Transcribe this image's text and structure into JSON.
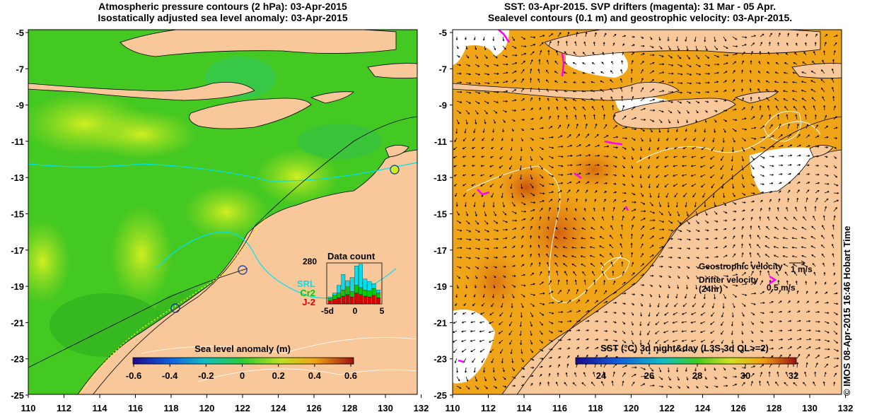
{
  "left_panel": {
    "title_line1": "Atmospheric pressure contours (2 hPa): 03-Apr-2015",
    "title_line2": "Isostatically adjusted sea level anomaly: 03-Apr-2015",
    "colorbar_label": "Sea level anomaly (m)",
    "colorbar_ticks": [
      "-0.6",
      "-0.4",
      "-0.2",
      "0",
      "0.2",
      "0.4",
      "0.6"
    ],
    "inset": {
      "title": "Data count",
      "ymax_label": "280",
      "x_ticks": [
        "-5d",
        "0",
        "5"
      ],
      "legend": [
        {
          "name": "SRL",
          "color": "#00e0f0"
        },
        {
          "name": "Cr2",
          "color": "#00cc00"
        },
        {
          "name": "J-2",
          "color": "#e00000"
        }
      ]
    }
  },
  "right_panel": {
    "title_line1": "SST: 03-Apr-2015. SVP drifters (magenta): 31 Mar - 05 Apr.",
    "title_line2": "Sealevel contours (0.1 m) and geostrophic velocity: 03-Apr-2015.",
    "colorbar_label": "SST (°C) 3d night&day (L3S-3d QL>=2)",
    "colorbar_ticks": [
      "24",
      "26",
      "28",
      "30",
      "32"
    ],
    "legend_geostrophic": "Geostrophic velocity",
    "legend_geostrophic_scale": "1 m/s",
    "legend_drifter": "Drifter velocity",
    "legend_drifter_period": "(24hr)",
    "legend_drifter_scale": "0.5 m/s"
  },
  "y_axis_labels": [
    "-5",
    "-7",
    "-9",
    "-11",
    "-13",
    "-15",
    "-17",
    "-19",
    "-21",
    "-23",
    "-25"
  ],
  "x_axis_labels": [
    "110",
    "112",
    "114",
    "116",
    "118",
    "120",
    "122",
    "124",
    "126",
    "128",
    "130",
    "132"
  ],
  "credit": "© IMOS 08-Apr-2015 16:46 Hobart Time",
  "colors": {
    "land": "#f8c89a",
    "sla_green": "#44cc22",
    "sla_yellow": "#ccee22",
    "sst_orange": "#f0a418",
    "sst_dark": "#d46010",
    "drifter": "#ff00ff"
  }
}
